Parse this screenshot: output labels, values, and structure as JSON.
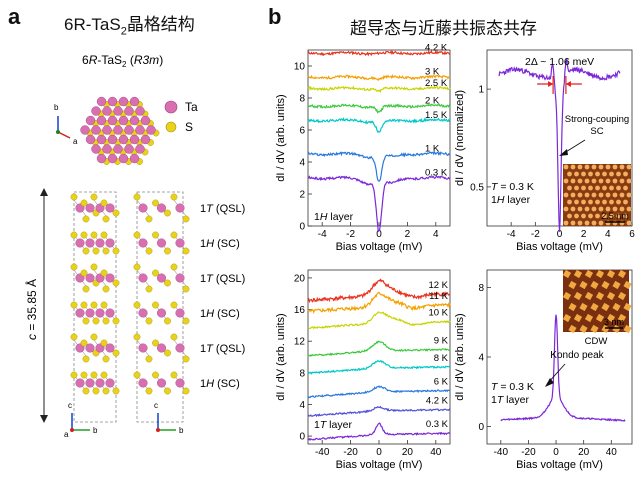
{
  "panel_a": {
    "label": "a",
    "title_main": "6R-TaS",
    "title_sub": "2",
    "title_rest": "晶格结构",
    "struct_title_pre": "6",
    "struct_title_r": "R",
    "struct_title_mid": "-TaS",
    "struct_title_sub": "2",
    "struct_title_post": " (",
    "struct_title_group": "R3m",
    "struct_title_close": ")",
    "legend": [
      {
        "name": "Ta",
        "color": "#d86fb0"
      },
      {
        "name": "S",
        "color": "#e8d21a"
      }
    ],
    "c_label_pre": "c",
    "c_label_post": " = 35.85 Å",
    "layers": [
      {
        "t": "1",
        "name": "T",
        "note": " (QSL)"
      },
      {
        "t": "1",
        "name": "H",
        "note": " (SC)"
      },
      {
        "t": "1",
        "name": "T",
        "note": " (QSL)"
      },
      {
        "t": "1",
        "name": "H",
        "note": " (SC)"
      },
      {
        "t": "1",
        "name": "T",
        "note": " (QSL)"
      },
      {
        "t": "1",
        "name": "H",
        "note": " (SC)"
      }
    ],
    "axes_top": {
      "b": "b",
      "a": "a"
    },
    "axes_bottom_left": {
      "c": "c",
      "b": "b",
      "a": "a"
    },
    "axes_bottom_right": {
      "c": "c",
      "b": "b"
    }
  },
  "panel_b": {
    "label": "b",
    "title": "超导态与近藤共振态共存"
  },
  "chart_data": [
    {
      "type": "line",
      "id": "top-left",
      "xlabel": "Bias voltage (mV)",
      "ylabel": "dI / dV (arb. units)",
      "xlim": [
        -5,
        5
      ],
      "ylim": [
        0,
        11
      ],
      "xticks": [
        -4,
        -2,
        0,
        2,
        4
      ],
      "yticks": [
        0,
        2,
        4,
        6,
        8,
        10
      ],
      "annotation": "1H layer",
      "series": [
        {
          "name": "4.2 K",
          "color": "#e8321e",
          "offset": 10.8,
          "dip": 0.0
        },
        {
          "name": "3 K",
          "color": "#f5a000",
          "offset": 9.3,
          "dip": 0.1
        },
        {
          "name": "2.5 K",
          "color": "#c8d400",
          "offset": 8.6,
          "dip": 0.15
        },
        {
          "name": "2 K",
          "color": "#3cc83c",
          "offset": 7.5,
          "dip": 0.3
        },
        {
          "name": "1.5 K",
          "color": "#00c8c8",
          "offset": 6.6,
          "dip": 0.6
        },
        {
          "name": "1 K",
          "color": "#2878dc",
          "offset": 4.5,
          "dip": 1.4
        },
        {
          "name": "0.3 K",
          "color": "#7a28d8",
          "offset": 3.0,
          "dip": 2.7
        }
      ]
    },
    {
      "type": "line",
      "id": "top-right",
      "xlabel": "Bias voltage (mV)",
      "ylabel": "dI / dV (normalized)",
      "xlim": [
        -6,
        6
      ],
      "ylim": [
        0.3,
        1.2
      ],
      "xticks": [
        -4,
        -2,
        0,
        2,
        4,
        6
      ],
      "yticks": [
        0.5,
        1.0
      ],
      "gap_label": "2Δ ~ 1.06 meV",
      "gap_meV": 1.06,
      "annotation": "Strong-couping\nSC",
      "conditions": [
        "T = 0.3 K",
        "1H layer"
      ],
      "inset_scale": "2.5 nm",
      "series": [
        {
          "name": "0.3 K",
          "color": "#7a28d8"
        }
      ]
    },
    {
      "type": "line",
      "id": "bottom-left",
      "xlabel": "Bias voltage (mV)",
      "ylabel": "dI / dV (arb. units)",
      "xlim": [
        -50,
        50
      ],
      "ylim": [
        -1,
        21
      ],
      "xticks": [
        -40,
        -20,
        0,
        20,
        40
      ],
      "yticks": [
        0,
        4,
        8,
        12,
        16,
        20
      ],
      "annotation": "1T layer",
      "series": [
        {
          "name": "12 K",
          "color": "#e8321e",
          "offset": 17.8
        },
        {
          "name": "11 K",
          "color": "#f5a000",
          "offset": 16.4
        },
        {
          "name": "10 K",
          "color": "#c8d400",
          "offset": 14.3
        },
        {
          "name": "9 K",
          "color": "#3cc83c",
          "offset": 10.8
        },
        {
          "name": "8 K",
          "color": "#00c8c8",
          "offset": 8.6
        },
        {
          "name": "6 K",
          "color": "#2878dc",
          "offset": 5.6
        },
        {
          "name": "4.2 K",
          "color": "#5050d8",
          "offset": 3.2
        },
        {
          "name": "0.3 K",
          "color": "#7a28d8",
          "offset": 0.2
        }
      ]
    },
    {
      "type": "line",
      "id": "bottom-right",
      "xlabel": "Bias voltage (mV)",
      "ylabel": "dI / dV (arb. units)",
      "xlim": [
        -50,
        55
      ],
      "ylim": [
        -1,
        9
      ],
      "xticks": [
        -40,
        -20,
        0,
        20,
        40
      ],
      "yticks": [
        0,
        4,
        8
      ],
      "annotation": "Kondo peak",
      "conditions": [
        "T = 0.3 K",
        "1T layer"
      ],
      "inset_scale": "3 nm",
      "inset_label": "CDW",
      "series": [
        {
          "name": "0.3 K",
          "color": "#7a28d8"
        }
      ]
    }
  ]
}
